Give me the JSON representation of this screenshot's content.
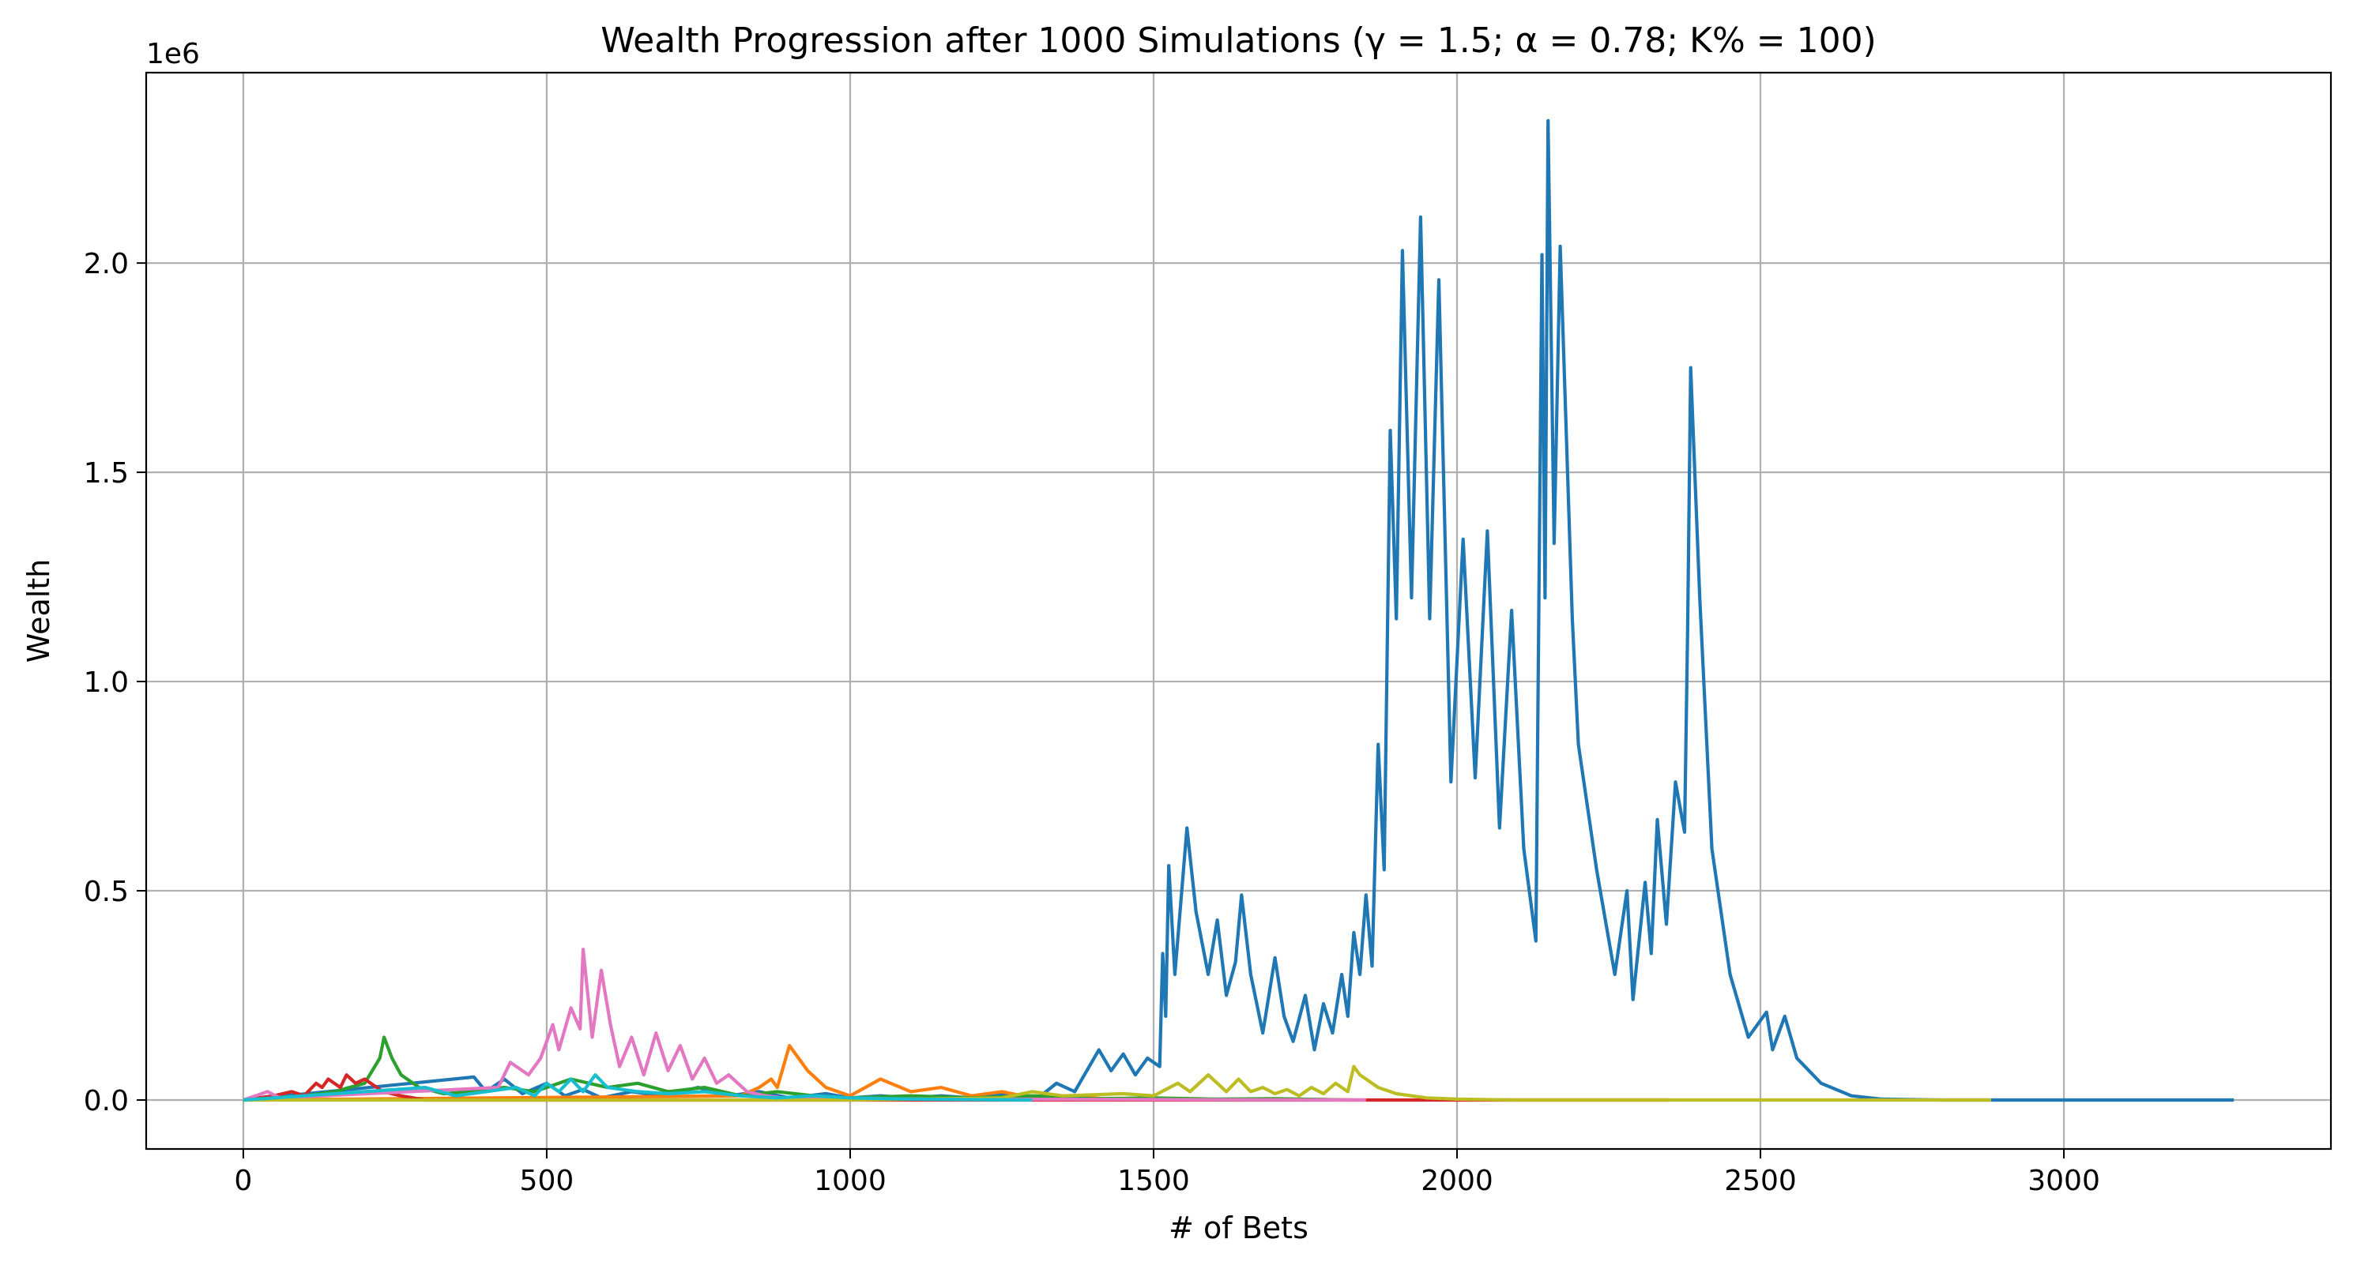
{
  "chart_data": {
    "type": "line",
    "title": "Wealth Progression after 1000 Simulations (γ = 1.5; α = 0.78; K% = 100)",
    "xlabel": "# of Bets",
    "ylabel": "Wealth",
    "offset_label": "1e6",
    "xlim": [
      -160,
      3440
    ],
    "ylim": [
      -0.117,
      2.455
    ],
    "y_scale_factor": 1000000,
    "xticks": [
      0,
      500,
      1000,
      1500,
      2000,
      2500,
      3000
    ],
    "xtick_labels": [
      "0",
      "500",
      "1000",
      "1500",
      "2000",
      "2500",
      "3000"
    ],
    "yticks": [
      0.0,
      0.5,
      1.0,
      1.5,
      2.0
    ],
    "ytick_labels": [
      "0.0",
      "0.5",
      "1.0",
      "1.5",
      "2.0"
    ],
    "grid": true,
    "series": [
      {
        "color": "#1f77b4",
        "x": [
          0,
          380,
          400,
          430,
          460,
          500,
          530,
          560,
          590,
          640,
          690,
          750,
          800,
          850,
          900,
          960,
          1000,
          1050,
          1100,
          1150,
          1200,
          1260,
          1310,
          1340,
          1370,
          1410,
          1430,
          1450,
          1470,
          1490,
          1510,
          1515,
          1520,
          1525,
          1535,
          1555,
          1570,
          1590,
          1605,
          1620,
          1635,
          1645,
          1660,
          1680,
          1700,
          1715,
          1730,
          1750,
          1765,
          1780,
          1795,
          1810,
          1820,
          1830,
          1840,
          1850,
          1860,
          1870,
          1880,
          1890,
          1900,
          1910,
          1925,
          1940,
          1955,
          1970,
          1990,
          2010,
          2030,
          2050,
          2070,
          2090,
          2110,
          2130,
          2140,
          2145,
          2150,
          2160,
          2170,
          2190,
          2200,
          2230,
          2260,
          2280,
          2290,
          2310,
          2320,
          2330,
          2345,
          2360,
          2375,
          2380,
          2385,
          2400,
          2420,
          2450,
          2480,
          2510,
          2520,
          2540,
          2560,
          2600,
          2650,
          2700,
          2800,
          3000,
          3280
        ],
        "y": [
          0,
          0.055,
          0.02,
          0.05,
          0.015,
          0.04,
          0.01,
          0.025,
          0.005,
          0.02,
          0.01,
          0.03,
          0.01,
          0.02,
          0.005,
          0.015,
          0.005,
          0.01,
          0.005,
          0.01,
          0.005,
          0.015,
          0.005,
          0.04,
          0.02,
          0.12,
          0.07,
          0.11,
          0.06,
          0.1,
          0.08,
          0.35,
          0.2,
          0.56,
          0.3,
          0.65,
          0.45,
          0.3,
          0.43,
          0.25,
          0.33,
          0.49,
          0.3,
          0.16,
          0.34,
          0.2,
          0.14,
          0.25,
          0.12,
          0.23,
          0.16,
          0.3,
          0.2,
          0.4,
          0.3,
          0.49,
          0.32,
          0.85,
          0.55,
          1.6,
          1.15,
          2.03,
          1.2,
          2.11,
          1.15,
          1.96,
          0.76,
          1.34,
          0.77,
          1.36,
          0.65,
          1.17,
          0.6,
          0.38,
          2.02,
          1.2,
          2.34,
          1.33,
          2.04,
          1.15,
          0.85,
          0.55,
          0.3,
          0.5,
          0.24,
          0.52,
          0.35,
          0.67,
          0.42,
          0.76,
          0.64,
          1.13,
          1.75,
          1.2,
          0.6,
          0.3,
          0.15,
          0.21,
          0.12,
          0.2,
          0.1,
          0.04,
          0.01,
          0.002,
          0,
          0,
          0
        ]
      },
      {
        "color": "#ff7f0e",
        "x": [
          0,
          820,
          850,
          870,
          880,
          890,
          900,
          930,
          960,
          1000,
          1050,
          1100,
          1150,
          1200,
          1250,
          1300,
          1350,
          1400,
          1450
        ],
        "y": [
          0,
          0.01,
          0.03,
          0.05,
          0.03,
          0.08,
          0.13,
          0.07,
          0.03,
          0.01,
          0.05,
          0.02,
          0.03,
          0.01,
          0.02,
          0.005,
          0.01,
          0.005,
          0
        ]
      },
      {
        "color": "#2ca02c",
        "x": [
          0,
          100,
          150,
          200,
          225,
          232,
          245,
          260,
          290,
          330,
          380,
          430,
          480,
          540,
          600,
          650,
          700,
          760,
          820,
          880,
          940,
          1000,
          1100,
          1200,
          1300,
          1400,
          1500,
          1600,
          1700,
          1830
        ],
        "y": [
          0,
          0.01,
          0.02,
          0.04,
          0.1,
          0.15,
          0.1,
          0.06,
          0.03,
          0.015,
          0.02,
          0.03,
          0.02,
          0.05,
          0.03,
          0.04,
          0.02,
          0.03,
          0.01,
          0.02,
          0.01,
          0.005,
          0.01,
          0.005,
          0.01,
          0.003,
          0.005,
          0.002,
          0.003,
          0
        ]
      },
      {
        "color": "#d62728",
        "x": [
          0,
          50,
          80,
          100,
          120,
          130,
          140,
          160,
          170,
          185,
          200,
          230,
          260,
          300,
          1800,
          1850,
          2350
        ],
        "y": [
          0,
          0.01,
          0.02,
          0.01,
          0.04,
          0.03,
          0.05,
          0.03,
          0.06,
          0.04,
          0.05,
          0.02,
          0.01,
          0,
          0,
          0,
          0
        ]
      },
      {
        "color": "#e377c2",
        "x": [
          0,
          20,
          40,
          60,
          420,
          440,
          470,
          490,
          510,
          520,
          540,
          555,
          560,
          575,
          590,
          605,
          620,
          640,
          660,
          680,
          700,
          720,
          740,
          760,
          780,
          800,
          830,
          860,
          900,
          1850
        ],
        "y": [
          0,
          0.01,
          0.02,
          0.005,
          0.03,
          0.09,
          0.06,
          0.1,
          0.18,
          0.12,
          0.22,
          0.17,
          0.36,
          0.15,
          0.31,
          0.18,
          0.08,
          0.15,
          0.06,
          0.16,
          0.07,
          0.13,
          0.05,
          0.1,
          0.04,
          0.06,
          0.02,
          0.01,
          0.003,
          0
        ]
      },
      {
        "color": "#bcbd22",
        "x": [
          0,
          1000,
          1250,
          1300,
          1350,
          1450,
          1500,
          1540,
          1560,
          1590,
          1620,
          1640,
          1660,
          1680,
          1700,
          1720,
          1740,
          1760,
          1780,
          1800,
          1820,
          1830,
          1840,
          1870,
          1900,
          1950,
          2000,
          2100,
          2200,
          2350,
          2500,
          2700,
          2880
        ],
        "y": [
          0,
          0,
          0.005,
          0.02,
          0.01,
          0.015,
          0.01,
          0.04,
          0.02,
          0.06,
          0.02,
          0.05,
          0.02,
          0.03,
          0.015,
          0.025,
          0.01,
          0.03,
          0.015,
          0.04,
          0.02,
          0.08,
          0.06,
          0.03,
          0.015,
          0.005,
          0.002,
          0,
          0,
          0,
          0,
          0,
          0
        ]
      },
      {
        "color": "#17becf",
        "x": [
          0,
          100,
          200,
          300,
          350,
          400,
          450,
          480,
          500,
          520,
          540,
          560,
          580,
          600,
          650,
          700,
          760,
          820,
          880,
          940,
          1000,
          1100,
          1200,
          1300
        ],
        "y": [
          0,
          0.01,
          0.02,
          0.03,
          0.01,
          0.02,
          0.03,
          0.01,
          0.04,
          0.02,
          0.05,
          0.02,
          0.06,
          0.03,
          0.02,
          0.015,
          0.02,
          0.01,
          0.005,
          0.01,
          0.005,
          0.002,
          0.001,
          0
        ]
      }
    ]
  }
}
